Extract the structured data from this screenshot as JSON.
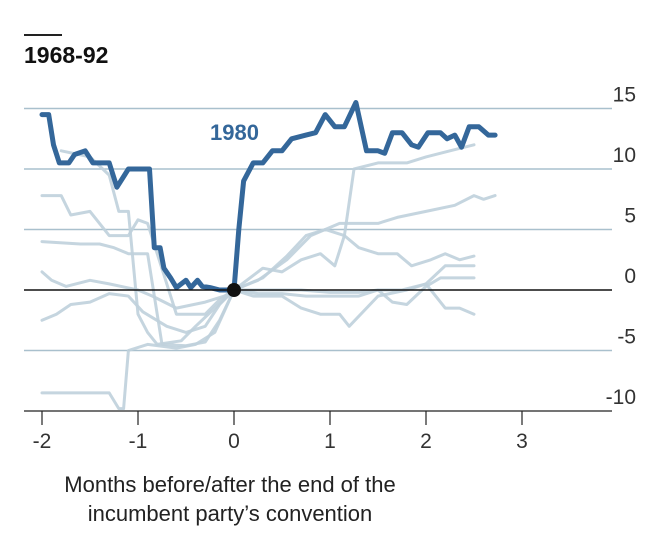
{
  "chart_data": {
    "type": "line",
    "title": "1968-92",
    "xlabel": "Months before/after the end of the incumbent party’s convention",
    "ylabel": "",
    "xlim": [
      -2.1,
      3.9
    ],
    "ylim": [
      -10,
      15
    ],
    "x_ticks": [
      "-2",
      "-1",
      "0",
      "1",
      "2",
      "3"
    ],
    "y_ticks": [
      "15",
      "10",
      "5",
      "0",
      "-5",
      "-10"
    ],
    "grid": "horizontal",
    "highlight_label": "1980",
    "colors": {
      "highlight": "#34679a",
      "background_series": "#bfd0db",
      "grid": "#a9c0cd",
      "zero_line": "#111111"
    },
    "series": [
      {
        "name": "1980",
        "highlighted": true,
        "points": [
          [
            -2.0,
            14.5
          ],
          [
            -1.93,
            14.5
          ],
          [
            -1.88,
            12.0
          ],
          [
            -1.82,
            10.5
          ],
          [
            -1.72,
            10.5
          ],
          [
            -1.66,
            11.2
          ],
          [
            -1.55,
            11.5
          ],
          [
            -1.47,
            10.5
          ],
          [
            -1.3,
            10.5
          ],
          [
            -1.22,
            8.5
          ],
          [
            -1.1,
            10.0
          ],
          [
            -0.88,
            10.0
          ],
          [
            -0.83,
            3.5
          ],
          [
            -0.77,
            3.5
          ],
          [
            -0.73,
            1.8
          ],
          [
            -0.66,
            1.0
          ],
          [
            -0.6,
            0.2
          ],
          [
            -0.5,
            0.8
          ],
          [
            -0.45,
            0.2
          ],
          [
            -0.38,
            0.8
          ],
          [
            -0.33,
            0.3
          ],
          [
            -0.25,
            0.2
          ],
          [
            -0.15,
            0.0
          ],
          [
            0.0,
            0.0
          ],
          [
            0.05,
            5.0
          ],
          [
            0.1,
            9.0
          ],
          [
            0.2,
            10.5
          ],
          [
            0.3,
            10.5
          ],
          [
            0.4,
            11.5
          ],
          [
            0.5,
            11.5
          ],
          [
            0.6,
            12.5
          ],
          [
            0.75,
            12.8
          ],
          [
            0.85,
            13.0
          ],
          [
            0.95,
            14.5
          ],
          [
            1.05,
            13.5
          ],
          [
            1.15,
            13.5
          ],
          [
            1.27,
            15.5
          ],
          [
            1.38,
            11.5
          ],
          [
            1.5,
            11.5
          ],
          [
            1.57,
            11.3
          ],
          [
            1.65,
            13.0
          ],
          [
            1.75,
            13.0
          ],
          [
            1.85,
            12.0
          ],
          [
            1.92,
            11.8
          ],
          [
            2.02,
            13.0
          ],
          [
            2.15,
            13.0
          ],
          [
            2.22,
            12.5
          ],
          [
            2.3,
            12.8
          ],
          [
            2.37,
            11.8
          ],
          [
            2.45,
            13.5
          ],
          [
            2.55,
            13.5
          ],
          [
            2.65,
            12.8
          ],
          [
            2.72,
            12.8
          ]
        ]
      },
      {
        "highlighted": false,
        "points": [
          [
            -2.0,
            7.8
          ],
          [
            -1.8,
            7.8
          ],
          [
            -1.7,
            6.2
          ],
          [
            -1.5,
            6.5
          ],
          [
            -1.3,
            4.5
          ],
          [
            -1.1,
            4.5
          ],
          [
            -1.0,
            5.8
          ],
          [
            -0.9,
            5.5
          ],
          [
            -0.6,
            -2.0
          ],
          [
            -0.3,
            -2.0
          ],
          [
            -0.15,
            -0.8
          ],
          [
            0.0,
            0.0
          ],
          [
            0.25,
            0.8
          ],
          [
            0.55,
            2.5
          ],
          [
            0.8,
            4.5
          ],
          [
            1.1,
            5.5
          ],
          [
            1.5,
            5.5
          ],
          [
            1.7,
            6.0
          ],
          [
            2.0,
            6.5
          ],
          [
            2.3,
            7.0
          ],
          [
            2.5,
            7.8
          ],
          [
            2.6,
            7.5
          ],
          [
            2.72,
            7.8
          ]
        ]
      },
      {
        "highlighted": false,
        "points": [
          [
            -2.0,
            4.0
          ],
          [
            -1.6,
            3.8
          ],
          [
            -1.4,
            3.8
          ],
          [
            -1.25,
            3.5
          ],
          [
            -1.1,
            3.0
          ],
          [
            -0.9,
            3.0
          ],
          [
            -0.75,
            -4.5
          ],
          [
            -0.5,
            -4.6
          ],
          [
            -0.3,
            -4.3
          ],
          [
            -0.15,
            -2.5
          ],
          [
            0.0,
            0.0
          ],
          [
            0.3,
            1.0
          ],
          [
            0.55,
            2.8
          ],
          [
            0.75,
            4.5
          ],
          [
            0.95,
            5.0
          ],
          [
            1.15,
            4.5
          ],
          [
            1.3,
            3.5
          ],
          [
            1.5,
            3.0
          ],
          [
            1.7,
            3.0
          ],
          [
            1.85,
            2.0
          ],
          [
            2.05,
            2.5
          ],
          [
            2.2,
            3.0
          ],
          [
            2.35,
            2.5
          ],
          [
            2.5,
            2.8
          ]
        ]
      },
      {
        "highlighted": false,
        "points": [
          [
            -2.0,
            1.5
          ],
          [
            -1.9,
            0.8
          ],
          [
            -1.75,
            0.3
          ],
          [
            -1.5,
            0.8
          ],
          [
            -1.3,
            0.5
          ],
          [
            -1.0,
            0.0
          ],
          [
            -0.85,
            -0.5
          ],
          [
            -0.6,
            -1.5
          ],
          [
            -0.3,
            -1.0
          ],
          [
            -0.1,
            -0.5
          ],
          [
            0.0,
            0.0
          ],
          [
            0.25,
            -0.3
          ],
          [
            0.5,
            -0.3
          ],
          [
            0.75,
            -0.5
          ],
          [
            1.0,
            -0.5
          ],
          [
            1.3,
            -0.5
          ],
          [
            1.5,
            0.0
          ],
          [
            1.65,
            -1.0
          ],
          [
            1.8,
            -1.2
          ],
          [
            2.0,
            0.3
          ],
          [
            2.15,
            1.0
          ],
          [
            2.3,
            1.0
          ],
          [
            2.5,
            1.0
          ]
        ]
      },
      {
        "highlighted": false,
        "points": [
          [
            -2.0,
            -2.5
          ],
          [
            -1.85,
            -2.0
          ],
          [
            -1.7,
            -1.2
          ],
          [
            -1.5,
            -1.0
          ],
          [
            -1.3,
            -0.3
          ],
          [
            -1.1,
            -0.5
          ],
          [
            -0.95,
            -1.8
          ],
          [
            -0.7,
            -3.0
          ],
          [
            -0.5,
            -3.5
          ],
          [
            -0.3,
            -3.0
          ],
          [
            -0.15,
            -1.2
          ],
          [
            0.0,
            0.0
          ],
          [
            0.2,
            -0.5
          ],
          [
            0.5,
            -0.5
          ],
          [
            0.7,
            -1.5
          ],
          [
            0.9,
            -2.0
          ],
          [
            1.1,
            -2.0
          ],
          [
            1.2,
            -3.0
          ],
          [
            1.5,
            -0.5
          ],
          [
            1.8,
            0.0
          ],
          [
            2.0,
            0.5
          ],
          [
            2.2,
            -1.5
          ],
          [
            2.35,
            -1.5
          ],
          [
            2.5,
            -2.0
          ]
        ]
      },
      {
        "highlighted": false,
        "points": [
          [
            -2.0,
            -8.5
          ],
          [
            -1.8,
            -8.5
          ],
          [
            -1.3,
            -8.5
          ],
          [
            -1.2,
            -9.8
          ],
          [
            -1.15,
            -9.8
          ],
          [
            -1.1,
            -5.0
          ],
          [
            -0.9,
            -4.5
          ],
          [
            -0.6,
            -4.8
          ],
          [
            -0.4,
            -4.5
          ],
          [
            -0.2,
            -3.5
          ],
          [
            0.0,
            0.0
          ],
          [
            0.3,
            1.8
          ],
          [
            0.5,
            1.5
          ],
          [
            0.7,
            2.5
          ],
          [
            0.9,
            3.0
          ],
          [
            1.05,
            2.0
          ],
          [
            1.15,
            4.5
          ],
          [
            1.25,
            10.0
          ],
          [
            1.5,
            10.5
          ],
          [
            1.8,
            10.5
          ],
          [
            2.0,
            11.0
          ],
          [
            2.25,
            11.5
          ],
          [
            2.5,
            12.0
          ]
        ]
      },
      {
        "highlighted": false,
        "points": [
          [
            -1.8,
            11.5
          ],
          [
            -1.5,
            11.0
          ],
          [
            -1.3,
            9.5
          ],
          [
            -1.2,
            6.5
          ],
          [
            -1.1,
            6.5
          ],
          [
            -1.0,
            -2.0
          ],
          [
            -0.9,
            -3.5
          ],
          [
            -0.8,
            -4.5
          ],
          [
            -0.55,
            -4.2
          ],
          [
            -0.4,
            -3.0
          ],
          [
            -0.2,
            -1.5
          ],
          [
            0.0,
            0.0
          ],
          [
            0.3,
            0.0
          ],
          [
            0.5,
            0.0
          ],
          [
            0.7,
            0.0
          ],
          [
            1.0,
            -0.2
          ],
          [
            1.3,
            -0.2
          ],
          [
            1.5,
            0.0
          ],
          [
            1.75,
            0.0
          ],
          [
            2.0,
            0.5
          ],
          [
            2.2,
            2.0
          ],
          [
            2.35,
            2.0
          ],
          [
            2.5,
            2.0
          ]
        ]
      }
    ]
  }
}
